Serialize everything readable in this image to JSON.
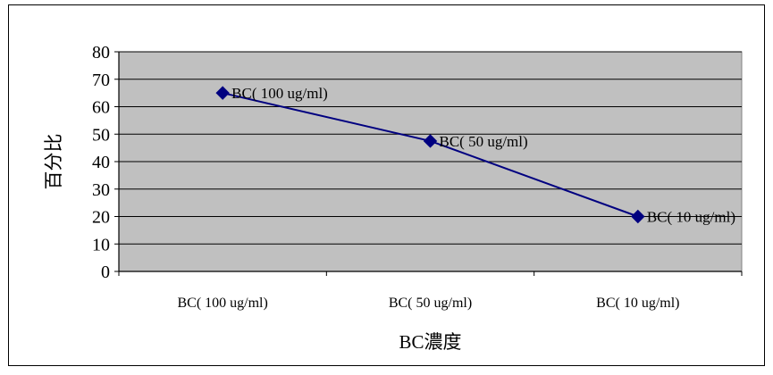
{
  "chart_data": {
    "type": "line",
    "categories": [
      "BC( 100 ug/ml)",
      "BC( 50 ug/ml)",
      "BC( 10 ug/ml)"
    ],
    "series": [
      {
        "values": [
          65,
          47.5,
          20
        ],
        "color": "#000080",
        "marker": "diamond"
      }
    ],
    "data_labels": [
      "BC( 100 ug/ml)",
      "BC( 50 ug/ml)",
      "BC( 10 ug/ml)"
    ],
    "ylabel": "百分比",
    "xlabel": "BC濃度",
    "ylim": [
      0,
      80
    ],
    "yticks": [
      0,
      10,
      20,
      30,
      40,
      50,
      60,
      70,
      80
    ],
    "grid": "horizontal",
    "legend": "none",
    "plot_background": "#c0c0c0"
  }
}
